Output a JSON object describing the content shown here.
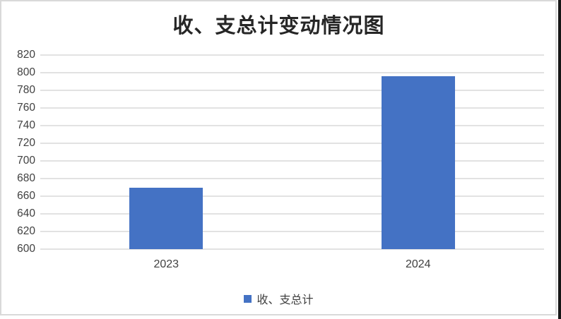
{
  "title": "收、支总计变动情况图",
  "legend": {
    "label": "收、支总计",
    "color": "#4472C4"
  },
  "chart_data": {
    "type": "bar",
    "title": "收、支总计变动情况图",
    "categories": [
      "2023",
      "2024"
    ],
    "series": [
      {
        "name": "收、支总计",
        "values": [
          670,
          796
        ]
      }
    ],
    "xlabel": "",
    "ylabel": "",
    "ylim": [
      600,
      820
    ],
    "ytick_step": 20,
    "y_ticks": [
      "820",
      "800",
      "780",
      "760",
      "740",
      "720",
      "700",
      "680",
      "660",
      "640",
      "620",
      "600"
    ],
    "grid": true,
    "legend_position": "bottom",
    "bar_color": "#4472C4",
    "gridline_color": "#e2e2e2"
  }
}
